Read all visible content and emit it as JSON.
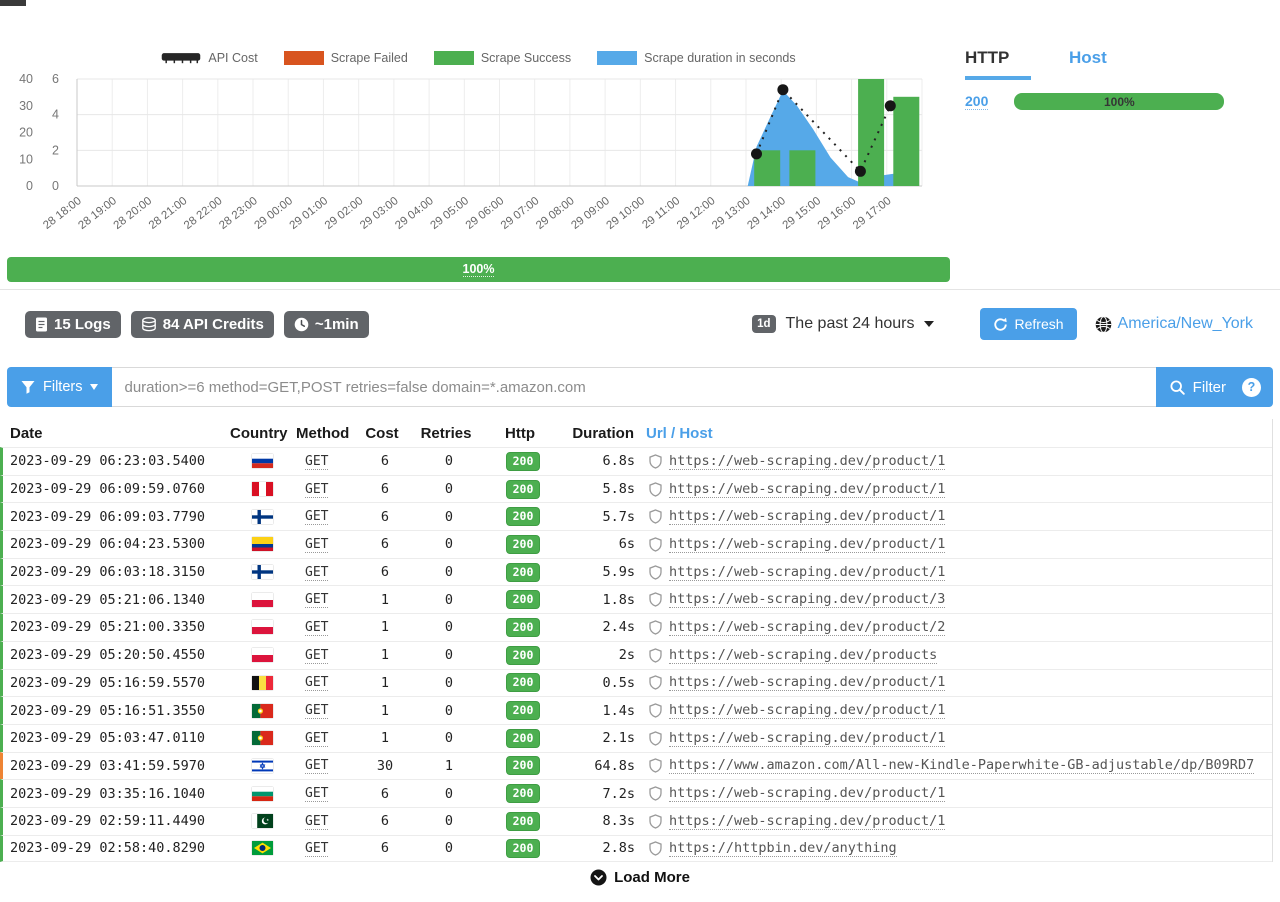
{
  "colors": {
    "accent_blue": "#4a9fe8",
    "chart_blue": "#56a9e8",
    "green": "#4caf50",
    "failed_orange": "#d8541f",
    "api_cost_black": "#262626",
    "badge_gray": "#616468",
    "warn_orange": "#ee8434"
  },
  "chart_data": {
    "type": "mixed",
    "x_labels": [
      "28 18:00",
      "28 19:00",
      "28 20:00",
      "28 21:00",
      "28 22:00",
      "28 23:00",
      "29 00:00",
      "29 01:00",
      "29 02:00",
      "29 03:00",
      "29 04:00",
      "29 05:00",
      "29 06:00",
      "29 07:00",
      "29 08:00",
      "29 09:00",
      "29 10:00",
      "29 11:00",
      "29 12:00",
      "29 13:00",
      "29 14:00",
      "29 15:00",
      "29 16:00",
      "29 17:00"
    ],
    "ylim_left": [
      0,
      40
    ],
    "y_left_ticks": [
      0,
      10,
      20,
      30,
      40
    ],
    "ylim_inner": [
      0,
      6
    ],
    "y_inner_ticks": [
      0,
      2,
      4,
      6
    ],
    "grid": true,
    "legend_position": "top",
    "series": [
      {
        "name": "API Cost",
        "type": "line+points",
        "axis": "left 0-40",
        "color": "#262626",
        "points": [
          {
            "x": "29 13:00",
            "y": 12
          },
          {
            "x": "29 14:00",
            "y": 36
          },
          {
            "x": "29 16:00",
            "y": 6
          },
          {
            "x": "29 17:00",
            "y": 30
          }
        ],
        "line_hours": [
          [
            19.3,
            12
          ],
          [
            20.05,
            36
          ],
          [
            22.25,
            5.5
          ],
          [
            23.1,
            30
          ]
        ]
      },
      {
        "name": "Scrape Failed",
        "type": "bar",
        "axis": "inner 0-6",
        "color": "#d8541f",
        "points": []
      },
      {
        "name": "Scrape Success",
        "type": "bar",
        "axis": "inner 0-6",
        "color": "#4caf50",
        "points": [
          {
            "x": "29 13:00",
            "y": 2
          },
          {
            "x": "29 14:00",
            "y": 2
          },
          {
            "x": "29 16:00",
            "y": 6
          },
          {
            "x": "29 17:00",
            "y": 5
          }
        ],
        "bar_hours": [
          [
            19.15,
            2
          ],
          [
            20.15,
            2
          ],
          [
            22.1,
            6
          ],
          [
            23.1,
            5
          ]
        ]
      },
      {
        "name": "Scrape duration in seconds",
        "type": "area",
        "axis": "inner 0-6",
        "color": "#56a9e8",
        "points": [
          {
            "x": "29 13:00",
            "y": 2.2
          },
          {
            "x": "29 14:00",
            "y": 5.35
          },
          {
            "x": "29 15:00",
            "y": 1.6
          },
          {
            "x": "29 16:00",
            "y": 0.3
          },
          {
            "x": "29 17:00",
            "y": 0.7
          }
        ],
        "outline_hours": [
          [
            19.05,
            0
          ],
          [
            19.3,
            2.2
          ],
          [
            19.7,
            3.9
          ],
          [
            20.05,
            5.35
          ],
          [
            20.45,
            4.5
          ],
          [
            20.9,
            3.2
          ],
          [
            21.4,
            1.6
          ],
          [
            21.9,
            0.5
          ],
          [
            22.3,
            0.15
          ],
          [
            22.7,
            0.55
          ],
          [
            23.25,
            0.7
          ],
          [
            23.4,
            0
          ]
        ]
      }
    ]
  },
  "legend": [
    {
      "label": "API Cost",
      "kind": "line",
      "color": "#262626"
    },
    {
      "label": "Scrape Failed",
      "kind": "box",
      "color": "#d8541f"
    },
    {
      "label": "Scrape Success",
      "kind": "box",
      "color": "#4caf50"
    },
    {
      "label": "Scrape duration in seconds",
      "kind": "box",
      "color": "#56a9e8"
    }
  ],
  "progress_bar": {
    "label": "100%"
  },
  "side_panel": {
    "tabs": {
      "http": "HTTP",
      "host": "Host"
    },
    "rows": [
      {
        "code": "200",
        "percent": "100%"
      }
    ]
  },
  "stats": {
    "logs": "15 Logs",
    "credits": "84 API Credits",
    "avg_time": "~1min"
  },
  "period": {
    "badge": "1d",
    "label": "The past 24 hours"
  },
  "refresh": {
    "label": "Refresh"
  },
  "timezone": {
    "label": "America/New_York"
  },
  "filters": {
    "button_label": "Filters",
    "placeholder": "duration>=6 method=GET,POST retries=false domain=*.amazon.com",
    "filter_button_label": "Filter",
    "help_label": "?"
  },
  "table": {
    "columns": [
      "Date",
      "Country",
      "Method",
      "Cost",
      "Retries",
      "Http",
      "Duration",
      "Url / Host"
    ],
    "rows": [
      {
        "date": "2023-09-29 06:23:03.5400",
        "country": "russia",
        "flag": "ru",
        "method": "GET",
        "cost": "6",
        "retries": "0",
        "http": "200",
        "duration": "6.8s",
        "url": "https://web-scraping.dev/product/1",
        "status": "ok"
      },
      {
        "date": "2023-09-29 06:09:59.0760",
        "country": "peru",
        "flag": "pe",
        "method": "GET",
        "cost": "6",
        "retries": "0",
        "http": "200",
        "duration": "5.8s",
        "url": "https://web-scraping.dev/product/1",
        "status": "ok"
      },
      {
        "date": "2023-09-29 06:09:03.7790",
        "country": "finland",
        "flag": "fi",
        "method": "GET",
        "cost": "6",
        "retries": "0",
        "http": "200",
        "duration": "5.7s",
        "url": "https://web-scraping.dev/product/1",
        "status": "ok"
      },
      {
        "date": "2023-09-29 06:04:23.5300",
        "country": "colombia",
        "flag": "co",
        "method": "GET",
        "cost": "6",
        "retries": "0",
        "http": "200",
        "duration": "6s",
        "url": "https://web-scraping.dev/product/1",
        "status": "ok"
      },
      {
        "date": "2023-09-29 06:03:18.3150",
        "country": "finland",
        "flag": "fi",
        "method": "GET",
        "cost": "6",
        "retries": "0",
        "http": "200",
        "duration": "5.9s",
        "url": "https://web-scraping.dev/product/1",
        "status": "ok"
      },
      {
        "date": "2023-09-29 05:21:06.1340",
        "country": "poland",
        "flag": "pl",
        "method": "GET",
        "cost": "1",
        "retries": "0",
        "http": "200",
        "duration": "1.8s",
        "url": "https://web-scraping.dev/product/3",
        "status": "ok"
      },
      {
        "date": "2023-09-29 05:21:00.3350",
        "country": "poland",
        "flag": "pl",
        "method": "GET",
        "cost": "1",
        "retries": "0",
        "http": "200",
        "duration": "2.4s",
        "url": "https://web-scraping.dev/product/2",
        "status": "ok"
      },
      {
        "date": "2023-09-29 05:20:50.4550",
        "country": "poland",
        "flag": "pl",
        "method": "GET",
        "cost": "1",
        "retries": "0",
        "http": "200",
        "duration": "2s",
        "url": "https://web-scraping.dev/products",
        "status": "ok"
      },
      {
        "date": "2023-09-29 05:16:59.5570",
        "country": "belgium",
        "flag": "be",
        "method": "GET",
        "cost": "1",
        "retries": "0",
        "http": "200",
        "duration": "0.5s",
        "url": "https://web-scraping.dev/product/1",
        "status": "ok"
      },
      {
        "date": "2023-09-29 05:16:51.3550",
        "country": "portugal",
        "flag": "pt",
        "method": "GET",
        "cost": "1",
        "retries": "0",
        "http": "200",
        "duration": "1.4s",
        "url": "https://web-scraping.dev/product/1",
        "status": "ok"
      },
      {
        "date": "2023-09-29 05:03:47.0110",
        "country": "portugal",
        "flag": "pt",
        "method": "GET",
        "cost": "1",
        "retries": "0",
        "http": "200",
        "duration": "2.1s",
        "url": "https://web-scraping.dev/product/1",
        "status": "ok"
      },
      {
        "date": "2023-09-29 03:41:59.5970",
        "country": "israel",
        "flag": "il",
        "method": "GET",
        "cost": "30",
        "retries": "1",
        "http": "200",
        "duration": "64.8s",
        "url": "https://www.amazon.com/All-new-Kindle-Paperwhite-GB-adjustable/dp/B09RD7",
        "status": "warn"
      },
      {
        "date": "2023-09-29 03:35:16.1040",
        "country": "bulgaria",
        "flag": "bg",
        "method": "GET",
        "cost": "6",
        "retries": "0",
        "http": "200",
        "duration": "7.2s",
        "url": "https://web-scraping.dev/product/1",
        "status": "ok"
      },
      {
        "date": "2023-09-29 02:59:11.4490",
        "country": "pakistan",
        "flag": "pk",
        "method": "GET",
        "cost": "6",
        "retries": "0",
        "http": "200",
        "duration": "8.3s",
        "url": "https://web-scraping.dev/product/1",
        "status": "ok"
      },
      {
        "date": "2023-09-29 02:58:40.8290",
        "country": "brazil",
        "flag": "br",
        "method": "GET",
        "cost": "6",
        "retries": "0",
        "http": "200",
        "duration": "2.8s",
        "url": "https://httpbin.dev/anything",
        "status": "ok"
      }
    ]
  },
  "load_more": {
    "label": "Load More"
  }
}
